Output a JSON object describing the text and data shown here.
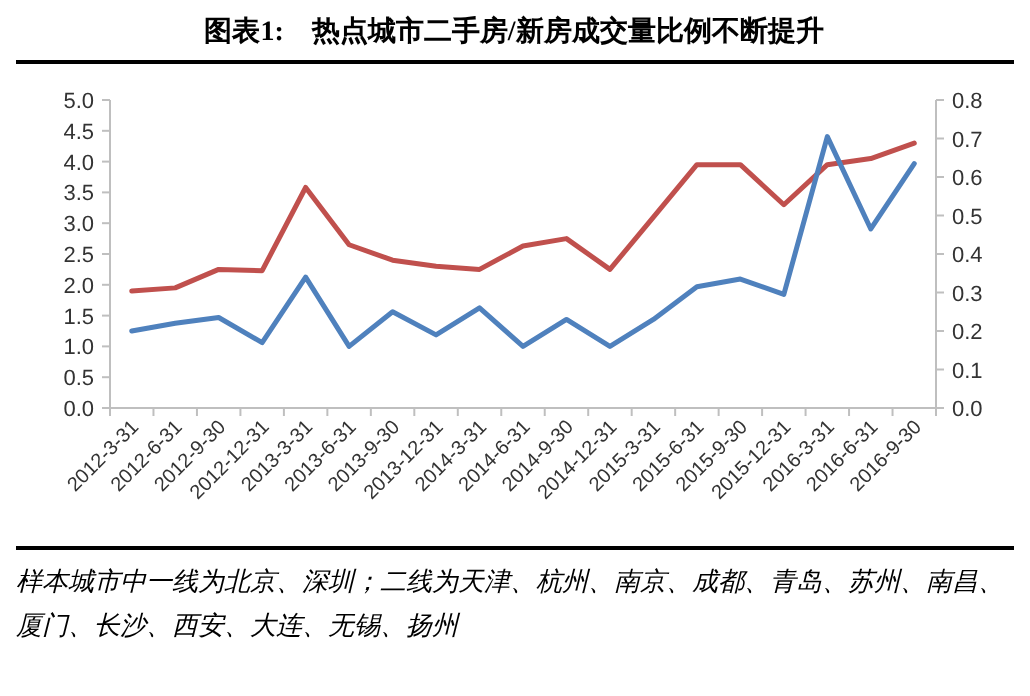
{
  "chart_data": {
    "type": "line",
    "title": "图表1:　热点城市二手房/新房成交量比例不断提升",
    "categories": [
      "2012-3-31",
      "2012-6-31",
      "2012-9-30",
      "2012-12-31",
      "2013-3-31",
      "2013-6-31",
      "2013-9-30",
      "2013-12-31",
      "2014-3-31",
      "2014-6-31",
      "2014-9-30",
      "2014-12-31",
      "2015-3-31",
      "2015-6-31",
      "2015-9-30",
      "2015-12-31",
      "2016-3-31",
      "2016-6-31",
      "2016-9-30"
    ],
    "series": [
      {
        "color": "#c0504d",
        "values": [
          1.9,
          1.95,
          2.25,
          2.23,
          3.58,
          2.65,
          2.4,
          2.3,
          2.25,
          2.63,
          2.75,
          2.25,
          3.1,
          3.95,
          3.95,
          3.3,
          3.95,
          4.05,
          4.3
        ]
      },
      {
        "color": "#4f81bd",
        "axis": "y2",
        "values": [
          0.2,
          0.22,
          0.235,
          0.17,
          0.34,
          0.16,
          0.25,
          0.19,
          0.26,
          0.16,
          0.23,
          0.16,
          0.23,
          0.315,
          0.335,
          0.295,
          0.705,
          0.465,
          0.635
        ]
      }
    ],
    "ylim": [
      0,
      5
    ],
    "yticks": [
      {
        "value": 0,
        "label": "0.0"
      },
      {
        "value": 0.5,
        "label": "0.5"
      },
      {
        "value": 1,
        "label": "1.0"
      },
      {
        "value": 1.5,
        "label": "1.5"
      },
      {
        "value": 2,
        "label": "2.0"
      },
      {
        "value": 2.5,
        "label": "2.5"
      },
      {
        "value": 3,
        "label": "3.0"
      },
      {
        "value": 3.5,
        "label": "3.5"
      },
      {
        "value": 4,
        "label": "4.0"
      },
      {
        "value": 4.5,
        "label": "4.5"
      },
      {
        "value": 5,
        "label": "5.0"
      }
    ],
    "y2lim": [
      0,
      0.8
    ],
    "y2ticks": [
      {
        "value": 0,
        "label": "0.0"
      },
      0.1,
      0.2,
      0.3,
      0.4,
      0.5,
      0.6,
      0.7,
      0.8
    ],
    "annotations": [
      "样本城市中一线为北京、深圳；二线为天津、杭州、南京、成都、青岛、苏州、南昌、厦门、长沙、西安、大连、无锡、扬州"
    ]
  }
}
